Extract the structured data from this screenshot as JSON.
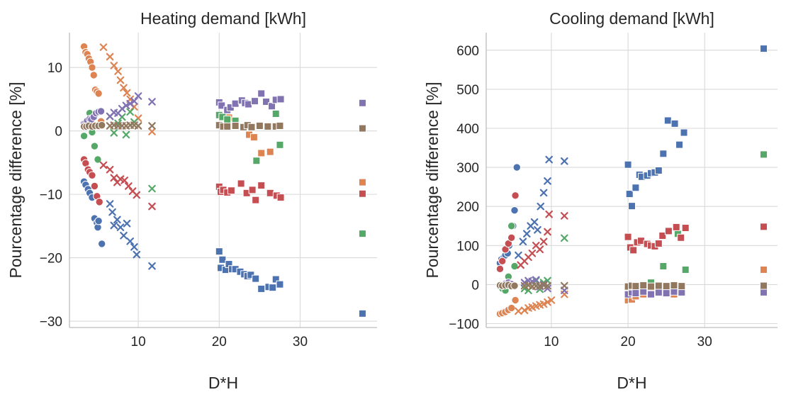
{
  "figure": {
    "xlabel": "D*H"
  },
  "chart_data": [
    {
      "type": "scatter",
      "title": "Heating demand [kWh]",
      "xlabel": "D*H",
      "ylabel": "Pourcentage difference [%]",
      "xlim": [
        1.5,
        39.5
      ],
      "ylim": [
        -31,
        15.5
      ],
      "xticks": [
        "10",
        "20",
        "30"
      ],
      "xtick_values": [
        10,
        20,
        30
      ],
      "yticks": [
        "10",
        "0",
        "−10",
        "−20",
        "−30"
      ],
      "ytick_values": [
        10,
        0,
        -10,
        -20,
        -30
      ],
      "grid": true,
      "legend": "none",
      "series": [
        {
          "color": "#4c72b0",
          "marker": "circle",
          "x": [
            3.3,
            3.5,
            3.8,
            4.0,
            4.3,
            4.6,
            4.9,
            5.0,
            5.1,
            5.5
          ],
          "y": [
            -8.0,
            -8.5,
            -9.2,
            -9.8,
            -10.5,
            -13.8,
            -14.5,
            -15.2,
            -14.2,
            -17.8
          ]
        },
        {
          "color": "#4c72b0",
          "marker": "cross",
          "x": [
            6.5,
            6.8,
            7.0,
            7.4,
            7.8,
            8.2,
            8.6,
            9.0,
            9.5,
            9.8,
            11.7
          ],
          "y": [
            -11.5,
            -12.8,
            -14.9,
            -14.0,
            -15.2,
            -16.5,
            -14.6,
            -17.4,
            -18.3,
            -19.5,
            -21.3
          ]
        },
        {
          "color": "#4c72b0",
          "marker": "square",
          "x": [
            20.0,
            20.2,
            20.4,
            20.8,
            21.2,
            21.6,
            22.0,
            22.6,
            23.1,
            23.5,
            23.9,
            24.5,
            25.2,
            26.1,
            26.6,
            27.0,
            27.5,
            37.7
          ],
          "y": [
            -19.0,
            -21.6,
            -20.3,
            -21.9,
            -21.0,
            -21.8,
            -21.8,
            -22.2,
            -22.6,
            -22.9,
            -22.7,
            -23.3,
            -24.9,
            -24.6,
            -24.7,
            -23.4,
            -24.2,
            -28.8
          ]
        },
        {
          "color": "#dd8452",
          "marker": "circle",
          "x": [
            3.3,
            3.5,
            3.7,
            3.9,
            4.1,
            4.3,
            4.5,
            4.7,
            4.9,
            5.1,
            5.4
          ],
          "y": [
            13.3,
            12.4,
            12.1,
            11.4,
            10.9,
            10.0,
            8.8,
            6.5,
            6.2,
            5.9,
            1.5
          ]
        },
        {
          "color": "#dd8452",
          "marker": "cross",
          "x": [
            5.7,
            6.5,
            7.0,
            7.5,
            7.8,
            8.2,
            8.6,
            9.0,
            9.5,
            10.0,
            11.7
          ],
          "y": [
            13.2,
            11.7,
            10.3,
            9.4,
            8.0,
            6.8,
            6.0,
            5.0,
            3.8,
            2.0,
            -0.1
          ]
        },
        {
          "color": "#dd8452",
          "marker": "square",
          "x": [
            21.2,
            23.7,
            24.3,
            25.2,
            26.3,
            37.7
          ],
          "y": [
            2.1,
            -0.6,
            -1.0,
            -3.5,
            -3.3,
            -8.1
          ]
        },
        {
          "color": "#55a868",
          "marker": "circle",
          "x": [
            3.3,
            3.6,
            4.0,
            4.3,
            4.6,
            5.0
          ],
          "y": [
            -0.8,
            1.0,
            2.8,
            -0.2,
            -2.4,
            -4.5
          ]
        },
        {
          "color": "#55a868",
          "marker": "cross",
          "x": [
            6.5,
            7.0,
            7.5,
            8.0,
            8.5,
            9.0,
            9.5,
            11.7
          ],
          "y": [
            2.3,
            -0.3,
            1.2,
            2.2,
            -0.6,
            3.0,
            1.4,
            -9.1
          ]
        },
        {
          "color": "#55a868",
          "marker": "square",
          "x": [
            20.0,
            20.4,
            21.0,
            22.0,
            24.6,
            27.0,
            27.5,
            37.7
          ],
          "y": [
            2.5,
            2.2,
            1.8,
            1.6,
            -4.7,
            2.7,
            -2.2,
            -16.2
          ]
        },
        {
          "color": "#c44e52",
          "marker": "circle",
          "x": [
            3.3,
            3.5,
            3.8,
            4.0,
            4.3,
            4.6,
            4.9,
            5.2
          ],
          "y": [
            -4.5,
            -5.1,
            -6.1,
            -6.5,
            -7.0,
            -8.7,
            -10.3,
            -11.2
          ]
        },
        {
          "color": "#c44e52",
          "marker": "cross",
          "x": [
            5.7,
            6.5,
            7.0,
            7.4,
            7.8,
            8.3,
            8.8,
            9.3,
            9.8,
            11.7
          ],
          "y": [
            -5.4,
            -6.1,
            -7.4,
            -8.1,
            -7.6,
            -7.8,
            -8.7,
            -9.5,
            -10.1,
            -11.9
          ]
        },
        {
          "color": "#c44e52",
          "marker": "square",
          "x": [
            20.0,
            20.2,
            20.5,
            21.0,
            21.5,
            22.7,
            23.4,
            24.1,
            24.5,
            25.2,
            26.3,
            27.1,
            27.6,
            37.7
          ],
          "y": [
            -8.8,
            -9.6,
            -9.3,
            -9.7,
            -9.4,
            -8.3,
            -9.8,
            -9.3,
            -10.9,
            -8.6,
            -9.8,
            -10.2,
            -10.5,
            -9.9
          ]
        },
        {
          "color": "#8172b2",
          "marker": "circle",
          "x": [
            3.3,
            3.5,
            3.7,
            4.0,
            4.2,
            4.5,
            4.8,
            5.1,
            5.4
          ],
          "y": [
            1.2,
            1.3,
            1.6,
            1.9,
            1.8,
            2.2,
            2.8,
            3.0,
            3.1
          ]
        },
        {
          "color": "#8172b2",
          "marker": "cross",
          "x": [
            6.5,
            7.0,
            7.5,
            8.0,
            8.5,
            9.0,
            9.5,
            10.0,
            11.7
          ],
          "y": [
            2.3,
            2.9,
            2.8,
            3.5,
            4.0,
            4.3,
            4.7,
            5.5,
            4.6
          ]
        },
        {
          "color": "#8172b2",
          "marker": "square",
          "x": [
            20.0,
            20.3,
            21.0,
            21.4,
            22.0,
            22.8,
            23.2,
            23.6,
            24.4,
            25.2,
            25.8,
            26.5,
            27.0,
            27.6,
            37.7
          ],
          "y": [
            4.5,
            4.0,
            3.3,
            3.7,
            4.3,
            4.8,
            4.4,
            4.2,
            4.7,
            5.9,
            4.6,
            3.9,
            4.9,
            5.0,
            4.4
          ]
        },
        {
          "color": "#937860",
          "marker": "circle",
          "x": [
            3.3,
            3.6,
            3.9,
            4.3,
            4.7,
            5.1,
            5.5
          ],
          "y": [
            0.7,
            0.7,
            0.8,
            0.7,
            0.8,
            0.8,
            0.9
          ]
        },
        {
          "color": "#937860",
          "marker": "cross",
          "x": [
            6.5,
            7.0,
            7.5,
            8.0,
            8.5,
            9.0,
            9.5,
            10.0,
            11.7
          ],
          "y": [
            0.8,
            0.9,
            0.8,
            0.8,
            0.8,
            0.9,
            0.9,
            0.8,
            0.8
          ]
        },
        {
          "color": "#937860",
          "marker": "square",
          "x": [
            20.0,
            20.5,
            21.0,
            22.0,
            23.0,
            23.5,
            24.0,
            25.0,
            26.0,
            27.0,
            27.5,
            37.7
          ],
          "y": [
            0.9,
            0.7,
            0.7,
            0.8,
            0.6,
            0.9,
            0.6,
            0.8,
            0.7,
            0.7,
            0.8,
            0.4
          ]
        }
      ]
    },
    {
      "type": "scatter",
      "title": "Cooling demand [kWh]",
      "xlabel": "D*H",
      "ylabel": "Pourcentage difference [%]",
      "xlim": [
        1.5,
        39.5
      ],
      "ylim": [
        -110,
        645
      ],
      "xticks": [
        "10",
        "20",
        "30"
      ],
      "xtick_values": [
        10,
        20,
        30
      ],
      "yticks": [
        "600",
        "500",
        "400",
        "300",
        "200",
        "100",
        "0",
        "−100"
      ],
      "ytick_values": [
        600,
        500,
        400,
        300,
        200,
        100,
        0,
        -100
      ],
      "grid": true,
      "legend": "none",
      "series": [
        {
          "color": "#4c72b0",
          "marker": "circle",
          "x": [
            3.3,
            3.5,
            3.8,
            4.0,
            4.3,
            4.5,
            4.8,
            5.0,
            5.2,
            5.5
          ],
          "y": [
            55,
            65,
            70,
            75,
            80,
            100,
            120,
            150,
            190,
            300
          ]
        },
        {
          "color": "#4c72b0",
          "marker": "cross",
          "x": [
            5.7,
            6.3,
            6.8,
            7.3,
            7.8,
            8.2,
            8.6,
            9.0,
            9.5,
            9.7,
            11.7
          ],
          "y": [
            75,
            110,
            130,
            150,
            160,
            140,
            200,
            235,
            265,
            320,
            316
          ]
        },
        {
          "color": "#4c72b0",
          "marker": "square",
          "x": [
            20.0,
            20.2,
            20.5,
            21.0,
            21.5,
            21.8,
            22.5,
            23.0,
            23.5,
            24.0,
            24.6,
            25.2,
            26.1,
            26.7,
            27.3,
            37.7
          ],
          "y": [
            307,
            232,
            201,
            248,
            281,
            276,
            279,
            285,
            287,
            292,
            335,
            420,
            412,
            358,
            389,
            604
          ]
        },
        {
          "color": "#dd8452",
          "marker": "circle",
          "x": [
            3.3,
            3.6,
            4.0,
            4.4,
            4.8,
            5.3
          ],
          "y": [
            -75,
            -73,
            -70,
            -65,
            -60,
            -40
          ]
        },
        {
          "color": "#dd8452",
          "marker": "cross",
          "x": [
            5.7,
            6.5,
            7.0,
            7.5,
            8.0,
            8.5,
            9.0,
            9.5,
            10.0,
            11.7
          ],
          "y": [
            -68,
            -66,
            -60,
            -58,
            -55,
            -52,
            -50,
            -45,
            -40,
            -25
          ]
        },
        {
          "color": "#dd8452",
          "marker": "square",
          "x": [
            20.0,
            20.5,
            21.0,
            22.0,
            23.0,
            24.0,
            25.0,
            26.0,
            27.0,
            37.7
          ],
          "y": [
            -40,
            -38,
            -30,
            -25,
            -20,
            -22,
            -18,
            -25,
            -20,
            38
          ]
        },
        {
          "color": "#55a868",
          "marker": "circle",
          "x": [
            3.3,
            3.6,
            4.0,
            4.4,
            4.8,
            5.2
          ],
          "y": [
            -5,
            -10,
            -15,
            20,
            150,
            47
          ]
        },
        {
          "color": "#55a868",
          "marker": "cross",
          "x": [
            6.5,
            7.0,
            7.5,
            8.0,
            8.5,
            9.0,
            9.5,
            11.7
          ],
          "y": [
            -10,
            -15,
            -5,
            10,
            -12,
            5,
            10,
            119
          ]
        },
        {
          "color": "#55a868",
          "marker": "square",
          "x": [
            20.0,
            21.0,
            22.0,
            23.0,
            24.6,
            26.5,
            27.5,
            37.7
          ],
          "y": [
            -5,
            -10,
            0,
            5,
            47,
            130,
            38,
            333
          ]
        },
        {
          "color": "#c44e52",
          "marker": "circle",
          "x": [
            3.3,
            3.6,
            4.0,
            4.4,
            4.8,
            5.3
          ],
          "y": [
            40,
            60,
            90,
            105,
            120,
            228
          ]
        },
        {
          "color": "#c44e52",
          "marker": "cross",
          "x": [
            6.0,
            6.5,
            7.0,
            7.5,
            8.0,
            8.5,
            9.0,
            9.5,
            9.7,
            11.7
          ],
          "y": [
            50,
            60,
            70,
            80,
            100,
            90,
            110,
            135,
            180,
            176
          ]
        },
        {
          "color": "#c44e52",
          "marker": "square",
          "x": [
            20.0,
            20.3,
            20.7,
            21.2,
            21.7,
            22.5,
            23.0,
            23.5,
            24.0,
            24.5,
            25.3,
            26.3,
            26.9,
            27.5,
            37.7
          ],
          "y": [
            122,
            95,
            88,
            108,
            112,
            104,
            100,
            98,
            105,
            125,
            137,
            147,
            120,
            145,
            148
          ]
        },
        {
          "color": "#8172b2",
          "marker": "circle",
          "x": [
            3.3,
            3.6,
            4.0,
            4.4,
            4.8,
            5.2
          ],
          "y": [
            0,
            -3,
            2,
            5,
            1,
            -5
          ]
        },
        {
          "color": "#8172b2",
          "marker": "cross",
          "x": [
            6.5,
            7.0,
            7.5,
            8.0,
            8.5,
            9.0,
            9.5,
            11.7
          ],
          "y": [
            5,
            10,
            8,
            12,
            -5,
            0,
            -10,
            -15
          ]
        },
        {
          "color": "#8172b2",
          "marker": "square",
          "x": [
            20.0,
            20.5,
            21.0,
            22.0,
            23.0,
            24.0,
            25.0,
            26.0,
            27.0,
            37.7
          ],
          "y": [
            -25,
            -20,
            -22,
            -18,
            -25,
            -20,
            -22,
            -18,
            -20,
            -20
          ]
        },
        {
          "color": "#937860",
          "marker": "circle",
          "x": [
            3.3,
            3.6,
            4.0,
            4.4,
            4.8,
            5.2
          ],
          "y": [
            -2,
            -3,
            -2,
            -1,
            -4,
            -3
          ]
        },
        {
          "color": "#937860",
          "marker": "cross",
          "x": [
            6.5,
            7.0,
            7.5,
            8.0,
            8.5,
            9.0,
            9.5,
            11.7
          ],
          "y": [
            -3,
            -2,
            -5,
            -4,
            -3,
            -2,
            -3,
            -3
          ]
        },
        {
          "color": "#937860",
          "marker": "square",
          "x": [
            20.0,
            20.5,
            21.0,
            22.0,
            23.0,
            24.0,
            25.0,
            26.0,
            27.0,
            37.7
          ],
          "y": [
            -5,
            -3,
            -4,
            -2,
            -5,
            -3,
            -4,
            -2,
            -4,
            -3
          ]
        }
      ]
    }
  ]
}
